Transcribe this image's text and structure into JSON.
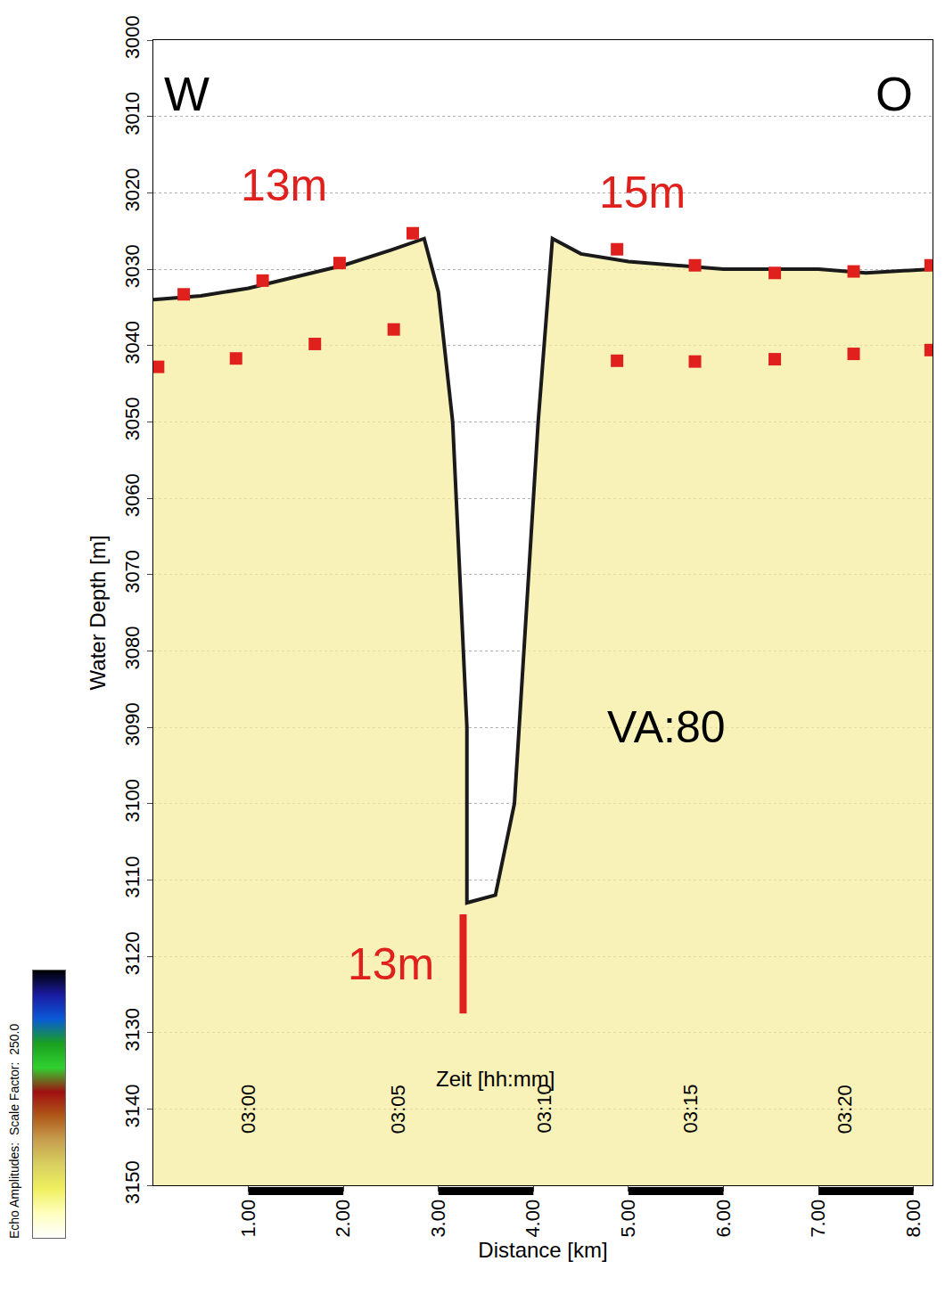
{
  "chart_data": {
    "type": "profile",
    "xlabel": "Distance [km]",
    "ylabel": "Water Depth [m]",
    "xlim": [
      0,
      8.2
    ],
    "xticks": [
      {
        "value": 1,
        "label": "1.00"
      },
      {
        "value": 2,
        "label": "2.00"
      },
      {
        "value": 3,
        "label": "3.00"
      },
      {
        "value": 4,
        "label": "4.00"
      },
      {
        "value": 5,
        "label": "5.00"
      },
      {
        "value": 6,
        "label": "6.00"
      },
      {
        "value": 7,
        "label": "7.00"
      },
      {
        "value": 8,
        "label": "8.00"
      }
    ],
    "ylim": [
      3150,
      3000
    ],
    "yticks": [
      3000,
      3010,
      3020,
      3030,
      3040,
      3050,
      3060,
      3070,
      3080,
      3090,
      3100,
      3110,
      3120,
      3130,
      3140,
      3150
    ],
    "grid": true,
    "series": [
      {
        "type": "line",
        "color": "#1a1a1a",
        "x": [
          0.0,
          0.5,
          1.0,
          1.5,
          2.0,
          2.5,
          2.85,
          3.0,
          3.15,
          3.3,
          3.3,
          3.6,
          3.8,
          3.95,
          4.05,
          4.2,
          4.5,
          5.0,
          5.5,
          6.0,
          6.5,
          7.0,
          7.5,
          8.2
        ],
        "values": [
          3034,
          3033.5,
          3032.5,
          3031,
          3029.5,
          3027.5,
          3026,
          3033,
          3050,
          3090,
          3113,
          3112,
          3100,
          3070,
          3050,
          3026,
          3028,
          3029,
          3029.5,
          3030,
          3030,
          3030,
          3030.5,
          3030
        ]
      },
      {
        "type": "scatter",
        "color": "#e0201c",
        "marker": "square",
        "x": [
          0.32,
          1.15,
          1.96,
          2.73,
          4.88,
          5.7,
          6.54,
          7.37,
          8.18
        ],
        "values": [
          3033.3,
          3031.5,
          3029.2,
          3025.3,
          3027.4,
          3029.5,
          3030.5,
          3030.3,
          3029.5
        ]
      },
      {
        "type": "scatter",
        "color": "#e0201c",
        "marker": "square",
        "x": [
          0.05,
          0.87,
          1.7,
          2.53,
          4.88,
          5.7,
          6.54,
          7.37,
          8.18
        ],
        "values": [
          3042.8,
          3041.7,
          3039.8,
          3037.9,
          3042.0,
          3042.1,
          3041.8,
          3041.1,
          3040.6
        ]
      }
    ],
    "annotations": [
      {
        "text": "W",
        "x": 0.35,
        "y": 3007,
        "color": "#000000"
      },
      {
        "text": "O",
        "x": 7.8,
        "y": 3007,
        "color": "#000000"
      },
      {
        "text": "13m",
        "x": 1.37,
        "y": 3019,
        "color": "#e0201c"
      },
      {
        "text": "15m",
        "x": 5.15,
        "y": 3020,
        "color": "#e0201c"
      },
      {
        "text": "VA:80",
        "x": 5.4,
        "y": 3090,
        "color": "#000000"
      },
      {
        "text": "13m",
        "x": 2.5,
        "y": 3121,
        "color": "#e0201c"
      },
      {
        "text": "Zeit [hh:mm]",
        "x": 3.6,
        "y": 3136,
        "color": "#000000"
      }
    ],
    "bracket": {
      "x": 3.26,
      "y0": 3114.5,
      "y1": 3127.5,
      "color": "#e0201c"
    },
    "time_marks": [
      {
        "x": 1.0,
        "label": "03:00"
      },
      {
        "x": 2.57,
        "label": "03:05"
      },
      {
        "x": 4.11,
        "label": "03:10"
      },
      {
        "x": 5.65,
        "label": "03:15"
      },
      {
        "x": 7.27,
        "label": "03:20"
      }
    ],
    "time_marks_y": 3140,
    "colorbar": {
      "title": "Echo Amplitudes:",
      "scale_label": "Scale Factor:",
      "scale_value": {
        "value": 250,
        "label": "250.0"
      },
      "colors": [
        "#000000",
        "#1a1aa0",
        "#0a5ad8",
        "#1aa020",
        "#30d030",
        "#a01010",
        "#b05a1a",
        "#c8a050",
        "#d8d060",
        "#f0f060",
        "#ffffc0",
        "#ffffff"
      ]
    }
  }
}
